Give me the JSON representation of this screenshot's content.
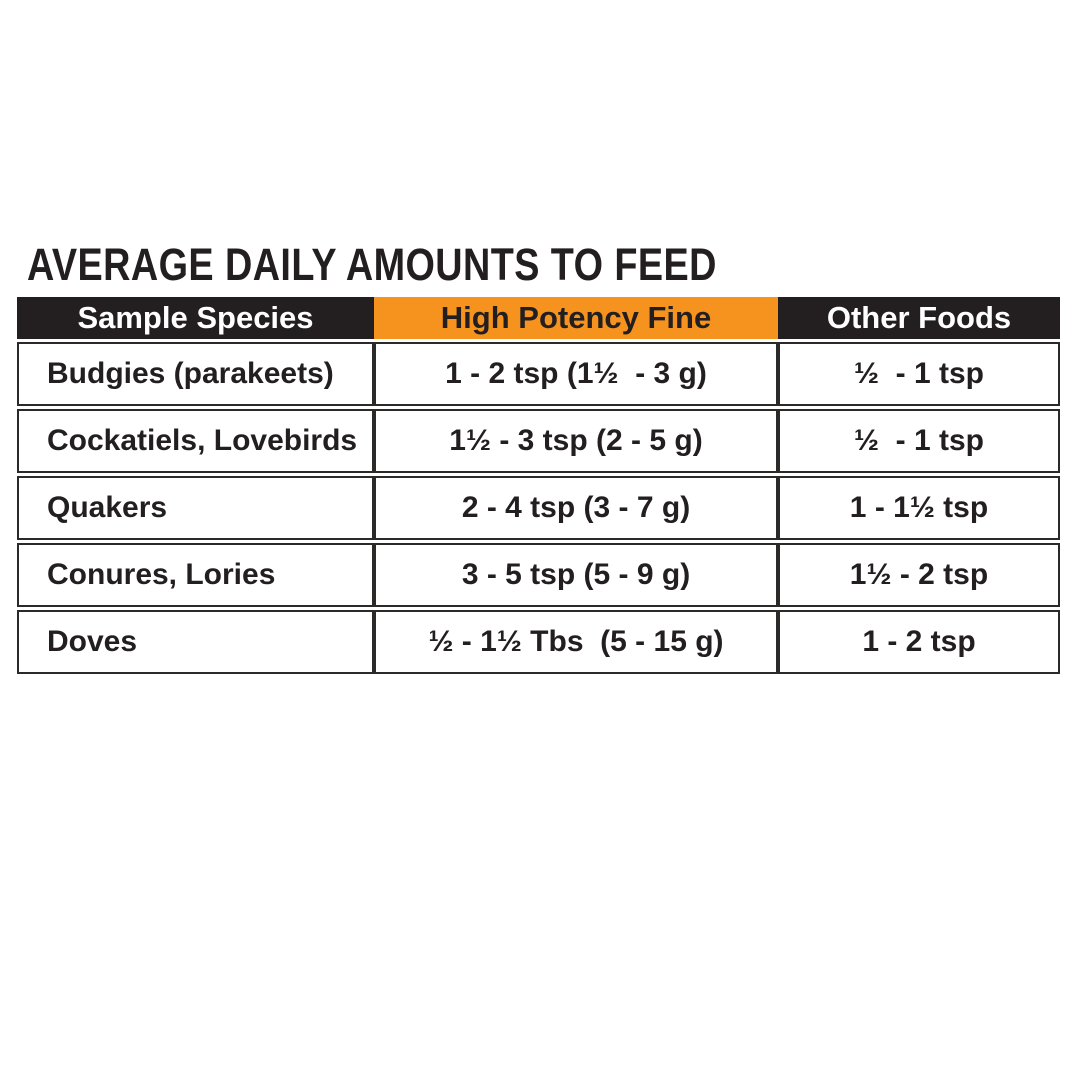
{
  "title": "AVERAGE DAILY AMOUNTS TO FEED",
  "colors": {
    "orange": "#F6921E",
    "black": "#231F20",
    "border": "#2B2A29",
    "header_text_light": "#FFFFFF"
  },
  "table": {
    "columns": [
      {
        "label": "Sample Species"
      },
      {
        "label": "High Potency Fine"
      },
      {
        "label": "Other Foods"
      }
    ],
    "rows": [
      {
        "species": "Budgies (parakeets)",
        "high_potency_fine": "1 - 2 tsp (1½  - 3 g)",
        "other_foods": "½  - 1 tsp"
      },
      {
        "species": "Cockatiels, Lovebirds",
        "high_potency_fine": "1½ - 3 tsp (2 - 5 g)",
        "other_foods": "½  - 1 tsp"
      },
      {
        "species": "Quakers",
        "high_potency_fine": "2 - 4 tsp (3 - 7 g)",
        "other_foods": "1 - 1½ tsp"
      },
      {
        "species": "Conures, Lories",
        "high_potency_fine": "3 - 5 tsp (5 - 9 g)",
        "other_foods": "1½ - 2 tsp"
      },
      {
        "species": "Doves",
        "high_potency_fine": "½ - 1½ Tbs  (5 - 15 g)",
        "other_foods": "1 - 2 tsp"
      }
    ]
  }
}
